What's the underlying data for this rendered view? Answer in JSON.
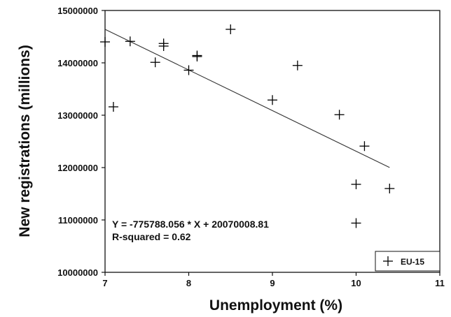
{
  "chart_data": {
    "type": "scatter",
    "xlabel": "Unemployment (%)",
    "ylabel": "New registrations (millions)",
    "xlim": [
      7,
      11
    ],
    "ylim": [
      10000000,
      15000000
    ],
    "x_ticks": [
      "7",
      "8",
      "9",
      "10",
      "11"
    ],
    "y_ticks": [
      "10000000",
      "11000000",
      "12000000",
      "13000000",
      "14000000",
      "15000000"
    ],
    "series": [
      {
        "name": "EU-15",
        "marker": "plus",
        "color": "#000000",
        "points": [
          {
            "x": 7.0,
            "y": 14400000
          },
          {
            "x": 7.1,
            "y": 13160000
          },
          {
            "x": 7.3,
            "y": 14410000
          },
          {
            "x": 7.6,
            "y": 14010000
          },
          {
            "x": 7.7,
            "y": 14320000
          },
          {
            "x": 7.7,
            "y": 14370000
          },
          {
            "x": 8.0,
            "y": 13860000
          },
          {
            "x": 8.1,
            "y": 14120000
          },
          {
            "x": 8.1,
            "y": 14140000
          },
          {
            "x": 8.5,
            "y": 14640000
          },
          {
            "x": 9.0,
            "y": 13290000
          },
          {
            "x": 9.3,
            "y": 13950000
          },
          {
            "x": 9.8,
            "y": 13010000
          },
          {
            "x": 10.0,
            "y": 11680000
          },
          {
            "x": 10.0,
            "y": 10940000
          },
          {
            "x": 10.1,
            "y": 12410000
          },
          {
            "x": 10.4,
            "y": 11600000
          }
        ]
      }
    ],
    "regression": {
      "slope": -775788.056,
      "intercept": 20070008.81,
      "x_range": [
        7,
        10.4
      ]
    },
    "annotations": [
      "Y = -775788.056 * X + 20070008.81",
      "R-squared = 0.62"
    ],
    "legend": {
      "position": "bottom-right",
      "entries": [
        "EU-15"
      ]
    },
    "grid": false
  }
}
